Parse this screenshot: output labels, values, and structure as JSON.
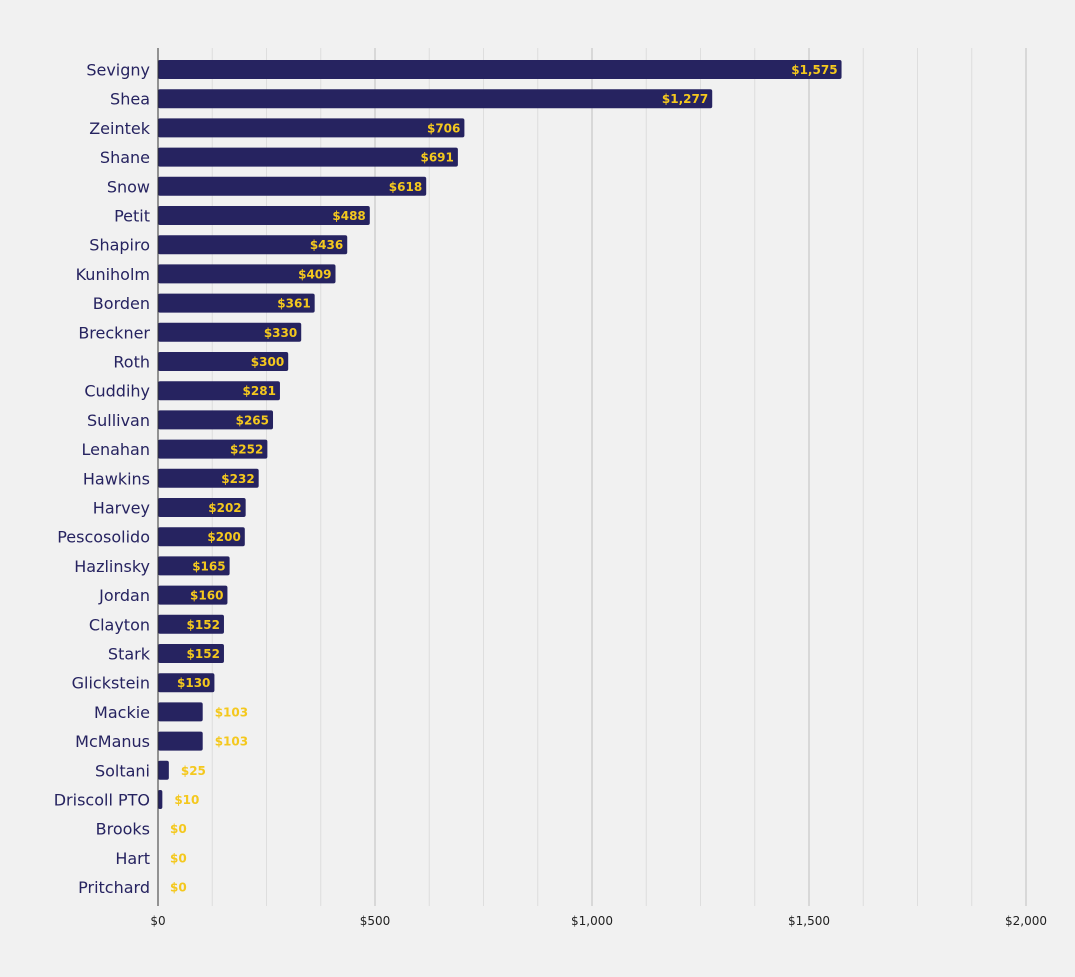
{
  "chart_data": {
    "type": "bar",
    "orientation": "horizontal",
    "categories": [
      "Sevigny",
      "Shea",
      "Zeintek",
      "Shane",
      "Snow",
      "Petit",
      "Shapiro",
      "Kuniholm",
      "Borden",
      "Breckner",
      "Roth",
      "Cuddihy",
      "Sullivan",
      "Lenahan",
      "Hawkins",
      "Harvey",
      "Pescosolido",
      "Hazlinsky",
      "Jordan",
      "Clayton",
      "Stark",
      "Glickstein",
      "Mackie",
      "McManus",
      "Soltani",
      "Driscoll PTO",
      "Brooks",
      "Hart",
      "Pritchard"
    ],
    "values": [
      1575,
      1277,
      706,
      691,
      618,
      488,
      436,
      409,
      361,
      330,
      300,
      281,
      265,
      252,
      232,
      202,
      200,
      165,
      160,
      152,
      152,
      130,
      103,
      103,
      25,
      10,
      0,
      0,
      0
    ],
    "value_labels": [
      "$1,575",
      "$1,277",
      "$706",
      "$691",
      "$618",
      "$488",
      "$436",
      "$409",
      "$361",
      "$330",
      "$300",
      "$281",
      "$265",
      "$252",
      "$232",
      "$202",
      "$200",
      "$165",
      "$160",
      "$152",
      "$152",
      "$130",
      "$103",
      "$103",
      "$25",
      "$10",
      "$0",
      "$0",
      "$0"
    ],
    "xlim": [
      0,
      2000
    ],
    "x_ticks": [
      0,
      500,
      1000,
      1500,
      2000
    ],
    "x_tick_labels": [
      "$0",
      "$500",
      "$1,000",
      "$1,500",
      "$2,000"
    ],
    "x_minor_step": 125,
    "title": "",
    "xlabel": "",
    "ylabel": "",
    "grid": "vertical",
    "legend": "none",
    "colors": {
      "bar": "#262360",
      "value_label": "#f4c81e",
      "category_label": "#262360",
      "background": "#f1f1f1",
      "grid_major": "#c0c0c0",
      "grid_minor": "#dedede",
      "axis": "#333333"
    }
  }
}
